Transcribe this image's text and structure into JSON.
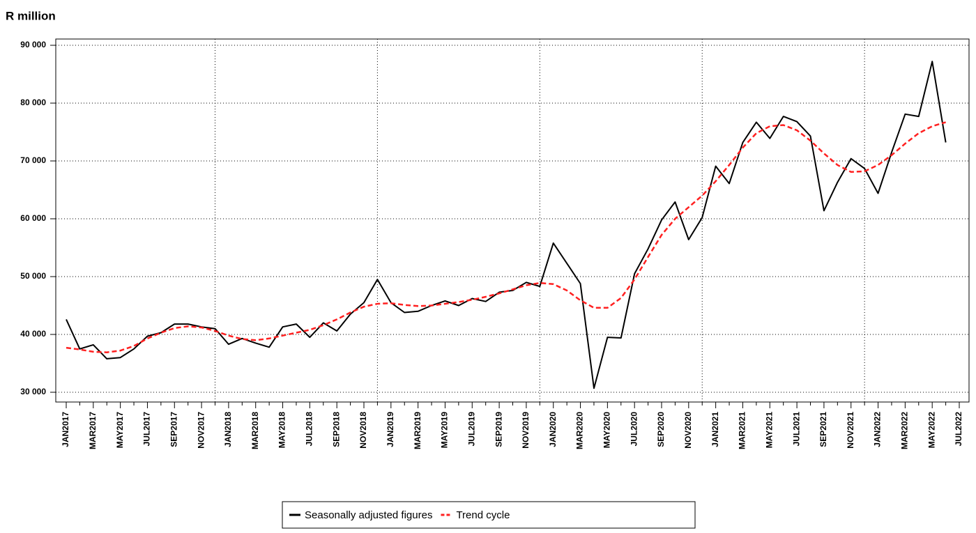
{
  "chart_data": {
    "type": "line",
    "title": "R million",
    "categories": [
      "JAN2017",
      null,
      "MAR2017",
      null,
      "MAY2017",
      null,
      "JUL2017",
      null,
      "SEP2017",
      null,
      "NOV2017",
      null,
      "JAN2018",
      null,
      "MAR2018",
      null,
      "MAY2018",
      null,
      "JUL2018",
      null,
      "SEP2018",
      null,
      "NOV2018",
      null,
      "JAN2019",
      null,
      "MAR2019",
      null,
      "MAY2019",
      null,
      "JUL2019",
      null,
      "SEP2019",
      null,
      "NOV2019",
      null,
      "JAN2020",
      null,
      "MAR2020",
      null,
      "MAY2020",
      null,
      "JUL2020",
      null,
      "SEP2020",
      null,
      "NOV2020",
      null,
      "JAN2021",
      null,
      "MAR2021",
      null,
      "MAY2021",
      null,
      "JUL2021",
      null,
      "SEP2021",
      null,
      "NOV2021",
      null,
      "JAN2022",
      null,
      "MAR2022",
      null,
      "MAY2022",
      null,
      "JUL2022"
    ],
    "series": [
      {
        "name": "Seasonally adjusted figures",
        "color": "#000000",
        "dash": false,
        "values": [
          42600,
          37500,
          38200,
          35800,
          36000,
          37500,
          39700,
          40300,
          41800,
          41800,
          41300,
          41000,
          38300,
          39300,
          38500,
          37800,
          41300,
          41800,
          39500,
          42000,
          40600,
          43500,
          45500,
          49500,
          45500,
          43800,
          44000,
          45000,
          45800,
          45000,
          46200,
          45700,
          47300,
          47600,
          49000,
          48300,
          55800,
          52300,
          48800,
          30700,
          39500,
          39400,
          50500,
          54800,
          59800,
          62900,
          56400,
          60200,
          69100,
          66100,
          73200,
          76700,
          73900,
          77700,
          76800,
          74300,
          61400,
          66300,
          70400,
          68700,
          64400,
          71500,
          78100,
          77700,
          87200,
          73200,
          null
        ]
      },
      {
        "name": "Trend cycle",
        "color": "#ff2020",
        "dash": true,
        "values": [
          37700,
          37400,
          37000,
          36900,
          37200,
          38000,
          39300,
          40300,
          41100,
          41400,
          41200,
          40600,
          39800,
          39200,
          39000,
          39300,
          39800,
          40300,
          40800,
          41600,
          42600,
          43800,
          44800,
          45300,
          45400,
          45100,
          44900,
          45000,
          45300,
          45600,
          46000,
          46500,
          47100,
          47800,
          48500,
          48900,
          48700,
          47600,
          45900,
          44600,
          44600,
          46300,
          49500,
          53400,
          57200,
          60000,
          62000,
          64000,
          66500,
          69300,
          72300,
          74800,
          76000,
          76200,
          75300,
          73500,
          71300,
          69300,
          68100,
          68200,
          69300,
          71000,
          73000,
          74800,
          76000,
          76700,
          null
        ]
      }
    ],
    "ylim": [
      30000,
      90000
    ],
    "yticks": [
      {
        "value": 30000,
        "label": "30 000"
      },
      {
        "value": 40000,
        "label": "40 000"
      },
      {
        "value": 50000,
        "label": "50 000"
      },
      {
        "value": 60000,
        "label": "60 000"
      },
      {
        "value": 70000,
        "label": "70 000"
      },
      {
        "value": 80000,
        "label": "80 000"
      },
      {
        "value": 90000,
        "label": "90 000"
      }
    ],
    "grid": true,
    "legend": "bottom"
  }
}
